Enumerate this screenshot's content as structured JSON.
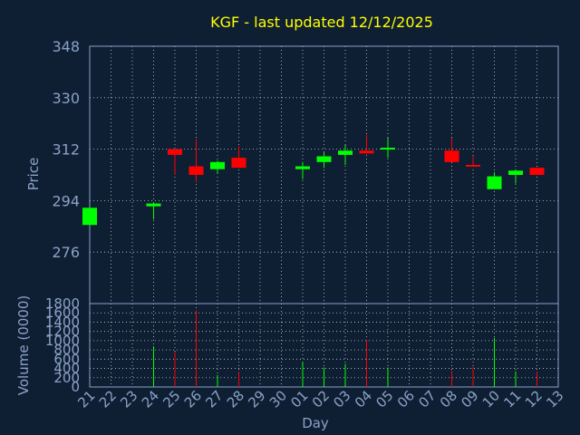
{
  "colors": {
    "background": "#0f1f33",
    "up": "#00ff00",
    "down": "#ff0000",
    "title": "#ffff00",
    "axis_text": "#8aa2c8",
    "grid": "#ffffff"
  },
  "chart_data": [
    {
      "type": "candlestick",
      "title": "KGF - last updated 12/12/2025",
      "ylabel": "Price",
      "ylim": [
        258,
        348
      ],
      "yticks": [
        348,
        330,
        312,
        294,
        276
      ],
      "grid": true,
      "candles": [
        {
          "day": "21",
          "open": 285.5,
          "close": 291.5,
          "high": 291.5,
          "low": 285.5
        },
        {
          "day": "24",
          "open": 292.0,
          "close": 293.0,
          "high": 293.5,
          "low": 287.5
        },
        {
          "day": "25",
          "open": 312.0,
          "close": 310.0,
          "high": 312.0,
          "low": 303.0
        },
        {
          "day": "26",
          "open": 306.0,
          "close": 303.0,
          "high": 315.5,
          "low": 300.5
        },
        {
          "day": "27",
          "open": 305.0,
          "close": 307.5,
          "high": 308.0,
          "low": 303.5
        },
        {
          "day": "28",
          "open": 309.0,
          "close": 305.5,
          "high": 313.0,
          "low": 305.5
        },
        {
          "day": "01",
          "open": 305.0,
          "close": 306.0,
          "high": 307.5,
          "low": 301.5
        },
        {
          "day": "02",
          "open": 307.5,
          "close": 309.5,
          "high": 311.0,
          "low": 305.5
        },
        {
          "day": "03",
          "open": 310.0,
          "close": 311.5,
          "high": 313.5,
          "low": 306.5
        },
        {
          "day": "04",
          "open": 311.5,
          "close": 310.5,
          "high": 317.0,
          "low": 310.5
        },
        {
          "day": "05",
          "open": 312.0,
          "close": 312.5,
          "high": 316.0,
          "low": 309.0
        },
        {
          "day": "08",
          "open": 311.5,
          "close": 307.5,
          "high": 316.0,
          "low": 307.5
        },
        {
          "day": "09",
          "open": 306.5,
          "close": 306.0,
          "high": 309.5,
          "low": 306.0
        },
        {
          "day": "10",
          "open": 298.0,
          "close": 302.5,
          "high": 304.0,
          "low": 298.0
        },
        {
          "day": "11",
          "open": 303.0,
          "close": 304.5,
          "high": 305.0,
          "low": 300.0
        },
        {
          "day": "12",
          "open": 305.5,
          "close": 303.0,
          "high": 305.5,
          "low": 303.0
        }
      ]
    },
    {
      "type": "bar",
      "ylabel": "Volume (0000)",
      "xlabel": "Day",
      "ylim": [
        0,
        1800
      ],
      "yticks": [
        0,
        200,
        400,
        600,
        800,
        1000,
        1200,
        1400,
        1600,
        1800
      ],
      "categories": [
        "21",
        "22",
        "23",
        "24",
        "25",
        "26",
        "27",
        "28",
        "29",
        "30",
        "01",
        "02",
        "03",
        "04",
        "05",
        "06",
        "07",
        "08",
        "09",
        "10",
        "11",
        "12",
        "13"
      ],
      "volumes": [
        {
          "day": "24",
          "value": 880,
          "direction": "up"
        },
        {
          "day": "25",
          "value": 760,
          "direction": "down"
        },
        {
          "day": "26",
          "value": 1650,
          "direction": "down"
        },
        {
          "day": "27",
          "value": 260,
          "direction": "up"
        },
        {
          "day": "28",
          "value": 330,
          "direction": "down"
        },
        {
          "day": "01",
          "value": 540,
          "direction": "up"
        },
        {
          "day": "02",
          "value": 420,
          "direction": "up"
        },
        {
          "day": "03",
          "value": 500,
          "direction": "up"
        },
        {
          "day": "04",
          "value": 1020,
          "direction": "down"
        },
        {
          "day": "05",
          "value": 420,
          "direction": "up"
        },
        {
          "day": "08",
          "value": 350,
          "direction": "down"
        },
        {
          "day": "09",
          "value": 430,
          "direction": "down"
        },
        {
          "day": "10",
          "value": 1060,
          "direction": "up"
        },
        {
          "day": "11",
          "value": 340,
          "direction": "up"
        },
        {
          "day": "12",
          "value": 330,
          "direction": "down"
        }
      ]
    }
  ]
}
